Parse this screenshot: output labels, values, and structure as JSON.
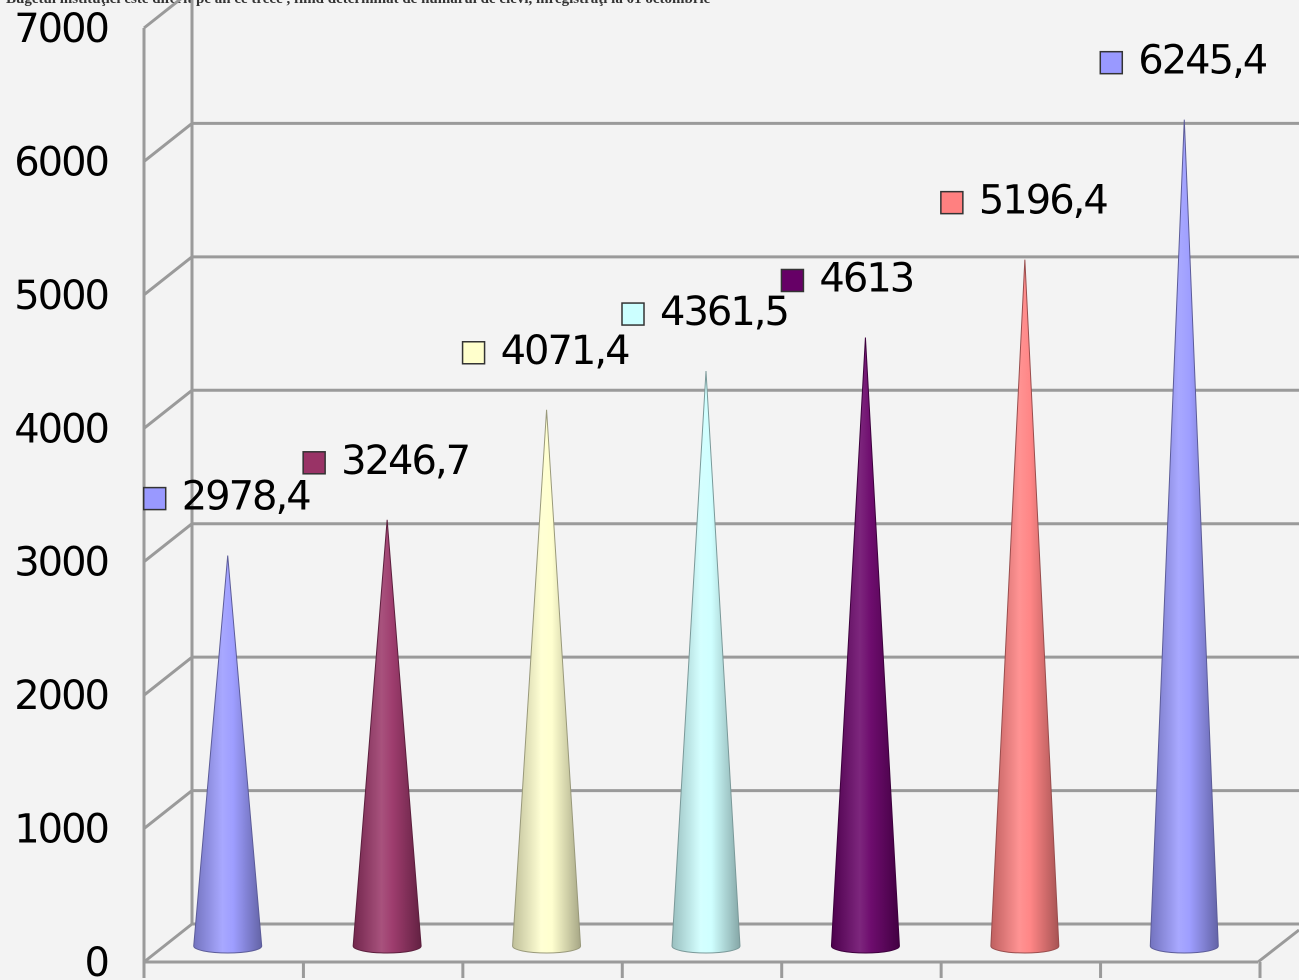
{
  "heading": "Bugetul instituţiei este diferit pe an ce trece , fiind determinat de numărul de elevi, înregistraţi la 01 octombrie",
  "chart_data": {
    "type": "bar",
    "bar_shape": "cone",
    "title": "",
    "xlabel": "",
    "ylabel": "",
    "ylim": [
      0,
      7000
    ],
    "yticks": [
      "0",
      "1000",
      "2000",
      "3000",
      "4000",
      "5000",
      "6000",
      "7000"
    ],
    "grid": true,
    "series": [
      {
        "value": 2978.4,
        "label": "2978,4",
        "color": "#9999ff"
      },
      {
        "value": 3246.7,
        "label": "3246,7",
        "color": "#993366"
      },
      {
        "value": 4071.4,
        "label": "4071,4",
        "color": "#ffffcc"
      },
      {
        "value": 4361.5,
        "label": "4361,5",
        "color": "#ccffff"
      },
      {
        "value": 4613,
        "label": "4613",
        "color": "#660066"
      },
      {
        "value": 5196.4,
        "label": "5196,4",
        "color": "#ff8080"
      },
      {
        "value": 6245.4,
        "label": "6245,4",
        "color": "#9999ff"
      }
    ]
  }
}
